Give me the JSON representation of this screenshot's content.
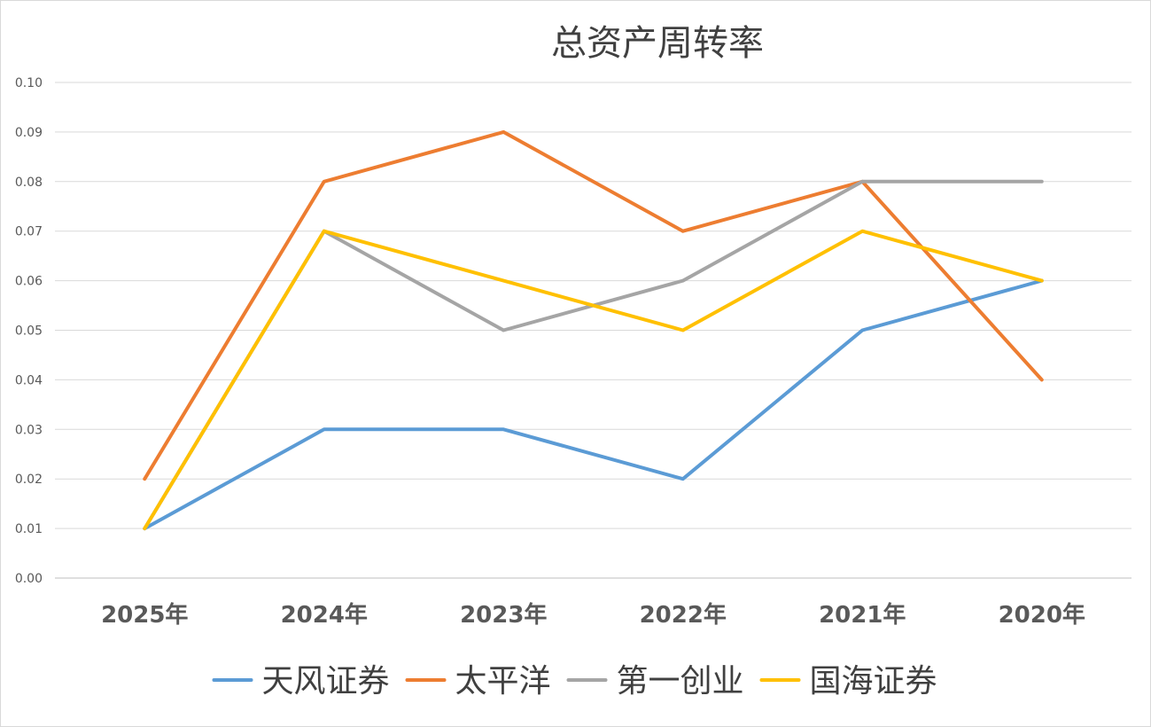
{
  "chart_data": {
    "type": "line",
    "title": "总资产周转率",
    "categories": [
      "2025年",
      "2024年",
      "2023年",
      "2022年",
      "2021年",
      "2020年"
    ],
    "ylim": [
      0,
      0.1
    ],
    "yticks": [
      "0.00",
      "0.01",
      "0.02",
      "0.03",
      "0.04",
      "0.05",
      "0.06",
      "0.07",
      "0.08",
      "0.09",
      "0.10"
    ],
    "grid": true,
    "legend_position": "bottom",
    "series": [
      {
        "name": "天风证券",
        "color": "#5b9bd5",
        "values": [
          0.01,
          0.03,
          0.03,
          0.02,
          0.05,
          0.06
        ]
      },
      {
        "name": "太平洋",
        "color": "#ed7d31",
        "values": [
          0.02,
          0.08,
          0.09,
          0.07,
          0.08,
          0.04
        ]
      },
      {
        "name": "第一创业",
        "color": "#a5a5a5",
        "values": [
          0.01,
          0.07,
          0.05,
          0.06,
          0.08,
          0.08
        ]
      },
      {
        "name": "国海证券",
        "color": "#ffc000",
        "values": [
          0.01,
          0.07,
          0.06,
          0.05,
          0.07,
          0.06
        ]
      }
    ]
  }
}
